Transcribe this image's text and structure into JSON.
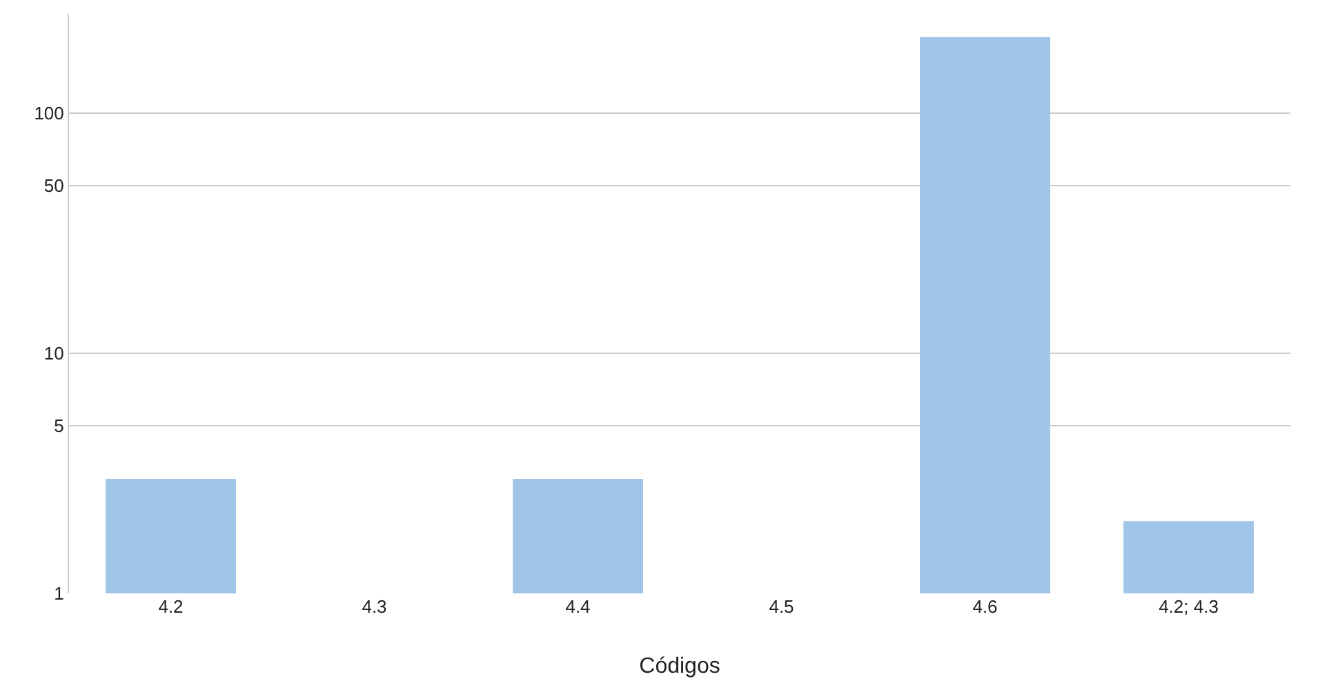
{
  "chart_data": {
    "type": "bar",
    "xlabel": "Códigos",
    "categories": [
      "4.2",
      "4.3",
      "4.4",
      "4.5",
      "4.6",
      "4.2; 4.3"
    ],
    "values": [
      3,
      1,
      3,
      1,
      208,
      2
    ],
    "color": "#9fc5e8",
    "log": true,
    "ylim": [
      1,
      260
    ],
    "yticks": [
      1,
      5,
      10,
      50,
      100
    ],
    "grid": "y"
  }
}
